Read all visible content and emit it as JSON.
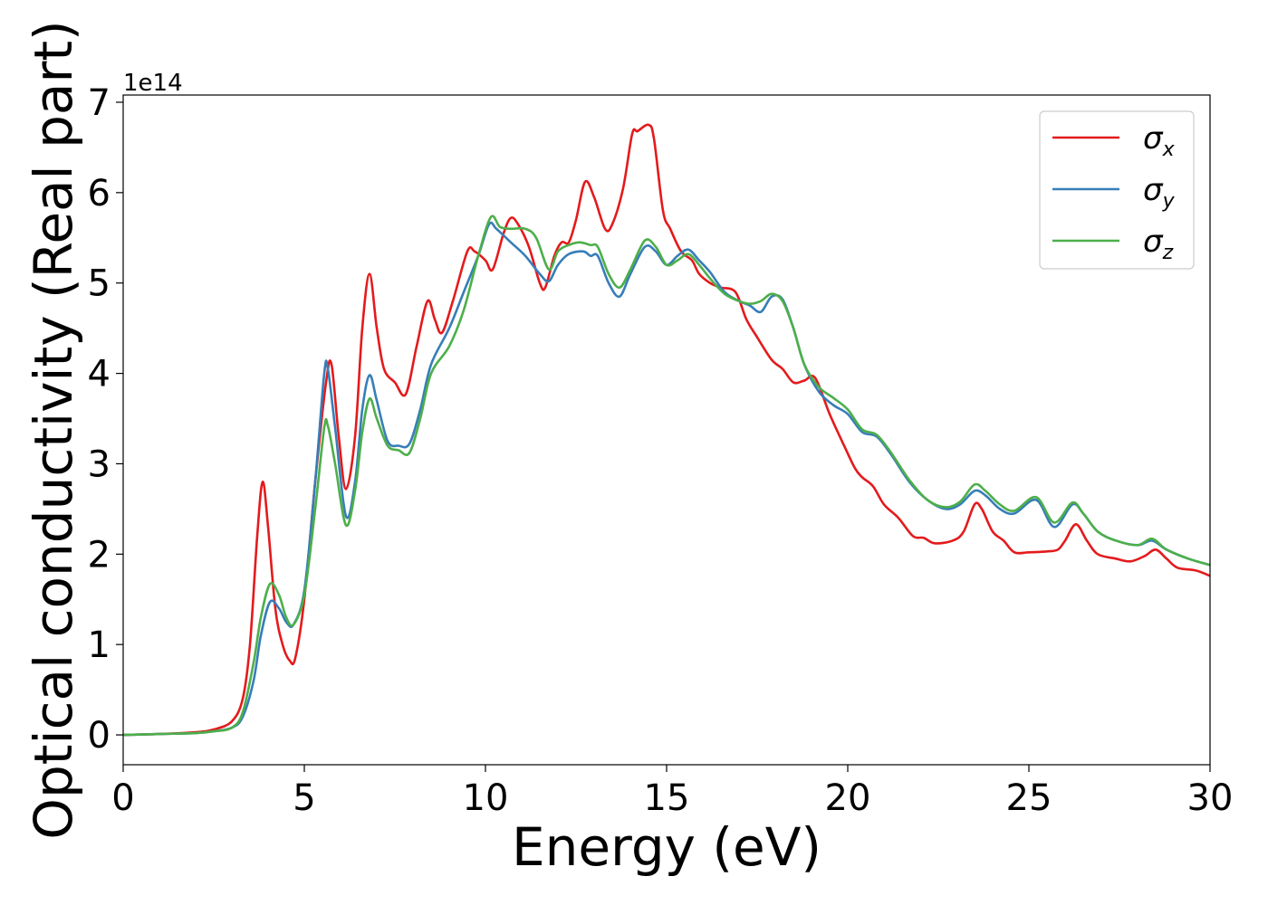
{
  "chart_data": {
    "type": "line",
    "title": "",
    "xlabel": "Energy (eV)",
    "ylabel": "Optical conductivity (Real part)",
    "y_offset_label": "1e14",
    "xlim": [
      0,
      30
    ],
    "ylim": [
      -0.33,
      7.08
    ],
    "xticks": [
      0,
      5,
      10,
      15,
      20,
      25,
      30
    ],
    "xtick_labels": [
      "0",
      "5",
      "10",
      "15",
      "20",
      "25",
      "30"
    ],
    "yticks": [
      0,
      1,
      2,
      3,
      4,
      5,
      6,
      7
    ],
    "ytick_labels": [
      "0",
      "1",
      "2",
      "3",
      "4",
      "5",
      "6",
      "7"
    ],
    "grid": false,
    "legend_position": "top-right",
    "series": [
      {
        "name": "σx",
        "symbol": "σ",
        "subscript": "x",
        "color": "#e41a1c",
        "points": [
          [
            0,
            0
          ],
          [
            1,
            0.01
          ],
          [
            2,
            0.03
          ],
          [
            2.5,
            0.06
          ],
          [
            3,
            0.15
          ],
          [
            3.3,
            0.4
          ],
          [
            3.5,
            1.0
          ],
          [
            3.7,
            2.2
          ],
          [
            3.85,
            2.8
          ],
          [
            4,
            2.3
          ],
          [
            4.2,
            1.4
          ],
          [
            4.4,
            1.0
          ],
          [
            4.6,
            0.82
          ],
          [
            4.75,
            0.85
          ],
          [
            5,
            1.5
          ],
          [
            5.3,
            2.8
          ],
          [
            5.6,
            3.9
          ],
          [
            5.75,
            4.1
          ],
          [
            5.95,
            3.3
          ],
          [
            6.15,
            2.72
          ],
          [
            6.4,
            3.3
          ],
          [
            6.6,
            4.5
          ],
          [
            6.8,
            5.1
          ],
          [
            7,
            4.5
          ],
          [
            7.2,
            4.05
          ],
          [
            7.5,
            3.9
          ],
          [
            7.8,
            3.77
          ],
          [
            8.1,
            4.3
          ],
          [
            8.4,
            4.8
          ],
          [
            8.6,
            4.6
          ],
          [
            8.8,
            4.45
          ],
          [
            9.1,
            4.8
          ],
          [
            9.5,
            5.35
          ],
          [
            9.7,
            5.35
          ],
          [
            10,
            5.25
          ],
          [
            10.2,
            5.15
          ],
          [
            10.5,
            5.55
          ],
          [
            10.7,
            5.72
          ],
          [
            10.9,
            5.65
          ],
          [
            11.2,
            5.4
          ],
          [
            11.5,
            5.0
          ],
          [
            11.65,
            4.95
          ],
          [
            11.9,
            5.3
          ],
          [
            12.1,
            5.45
          ],
          [
            12.3,
            5.45
          ],
          [
            12.5,
            5.7
          ],
          [
            12.75,
            6.12
          ],
          [
            13,
            5.95
          ],
          [
            13.3,
            5.6
          ],
          [
            13.5,
            5.65
          ],
          [
            13.8,
            6.05
          ],
          [
            14.05,
            6.65
          ],
          [
            14.2,
            6.68
          ],
          [
            14.5,
            6.75
          ],
          [
            14.65,
            6.6
          ],
          [
            14.9,
            5.8
          ],
          [
            15.1,
            5.6
          ],
          [
            15.4,
            5.35
          ],
          [
            15.7,
            5.25
          ],
          [
            15.9,
            5.1
          ],
          [
            16.2,
            5.0
          ],
          [
            16.5,
            4.95
          ],
          [
            16.9,
            4.9
          ],
          [
            17.2,
            4.6
          ],
          [
            17.5,
            4.4
          ],
          [
            17.9,
            4.15
          ],
          [
            18.2,
            4.05
          ],
          [
            18.5,
            3.9
          ],
          [
            18.8,
            3.92
          ],
          [
            19.1,
            3.95
          ],
          [
            19.5,
            3.55
          ],
          [
            19.9,
            3.2
          ],
          [
            20.2,
            2.95
          ],
          [
            20.4,
            2.85
          ],
          [
            20.7,
            2.75
          ],
          [
            21,
            2.55
          ],
          [
            21.4,
            2.4
          ],
          [
            21.8,
            2.2
          ],
          [
            22.1,
            2.18
          ],
          [
            22.4,
            2.12
          ],
          [
            22.9,
            2.15
          ],
          [
            23.2,
            2.25
          ],
          [
            23.5,
            2.55
          ],
          [
            23.7,
            2.5
          ],
          [
            24,
            2.25
          ],
          [
            24.3,
            2.15
          ],
          [
            24.6,
            2.02
          ],
          [
            25,
            2.02
          ],
          [
            25.5,
            2.03
          ],
          [
            25.8,
            2.05
          ],
          [
            26,
            2.15
          ],
          [
            26.3,
            2.33
          ],
          [
            26.6,
            2.15
          ],
          [
            26.9,
            2.0
          ],
          [
            27.4,
            1.95
          ],
          [
            27.8,
            1.92
          ],
          [
            28.2,
            1.98
          ],
          [
            28.5,
            2.05
          ],
          [
            28.8,
            1.95
          ],
          [
            29.1,
            1.85
          ],
          [
            29.6,
            1.82
          ],
          [
            30,
            1.76
          ]
        ]
      },
      {
        "name": "σy",
        "symbol": "σ",
        "subscript": "y",
        "color": "#377eb8",
        "points": [
          [
            0,
            0
          ],
          [
            1,
            0.01
          ],
          [
            2,
            0.02
          ],
          [
            2.5,
            0.04
          ],
          [
            3,
            0.08
          ],
          [
            3.3,
            0.2
          ],
          [
            3.6,
            0.6
          ],
          [
            3.8,
            1.1
          ],
          [
            4.05,
            1.47
          ],
          [
            4.3,
            1.4
          ],
          [
            4.5,
            1.25
          ],
          [
            4.7,
            1.22
          ],
          [
            5,
            1.6
          ],
          [
            5.3,
            2.8
          ],
          [
            5.55,
            4.0
          ],
          [
            5.65,
            4.05
          ],
          [
            5.85,
            3.4
          ],
          [
            6.15,
            2.42
          ],
          [
            6.4,
            2.8
          ],
          [
            6.6,
            3.6
          ],
          [
            6.8,
            3.98
          ],
          [
            7,
            3.7
          ],
          [
            7.3,
            3.25
          ],
          [
            7.6,
            3.2
          ],
          [
            7.9,
            3.22
          ],
          [
            8.2,
            3.6
          ],
          [
            8.5,
            4.1
          ],
          [
            9,
            4.5
          ],
          [
            9.4,
            4.9
          ],
          [
            9.8,
            5.3
          ],
          [
            10.1,
            5.65
          ],
          [
            10.3,
            5.6
          ],
          [
            10.7,
            5.45
          ],
          [
            11.1,
            5.3
          ],
          [
            11.5,
            5.1
          ],
          [
            11.75,
            5.02
          ],
          [
            12,
            5.2
          ],
          [
            12.3,
            5.32
          ],
          [
            12.7,
            5.35
          ],
          [
            12.9,
            5.3
          ],
          [
            13.1,
            5.3
          ],
          [
            13.4,
            5.0
          ],
          [
            13.7,
            4.85
          ],
          [
            14,
            5.1
          ],
          [
            14.4,
            5.4
          ],
          [
            14.7,
            5.35
          ],
          [
            15,
            5.2
          ],
          [
            15.3,
            5.3
          ],
          [
            15.6,
            5.37
          ],
          [
            15.9,
            5.25
          ],
          [
            16.2,
            5.12
          ],
          [
            16.6,
            4.9
          ],
          [
            17,
            4.8
          ],
          [
            17.3,
            4.75
          ],
          [
            17.6,
            4.68
          ],
          [
            17.9,
            4.85
          ],
          [
            18.2,
            4.82
          ],
          [
            18.5,
            4.5
          ],
          [
            18.8,
            4.1
          ],
          [
            19.2,
            3.8
          ],
          [
            19.6,
            3.65
          ],
          [
            20,
            3.55
          ],
          [
            20.4,
            3.35
          ],
          [
            20.8,
            3.3
          ],
          [
            21.2,
            3.1
          ],
          [
            21.7,
            2.8
          ],
          [
            22.2,
            2.6
          ],
          [
            22.7,
            2.5
          ],
          [
            23.1,
            2.55
          ],
          [
            23.5,
            2.7
          ],
          [
            23.8,
            2.65
          ],
          [
            24.2,
            2.5
          ],
          [
            24.6,
            2.45
          ],
          [
            25.2,
            2.6
          ],
          [
            25.7,
            2.3
          ],
          [
            26.2,
            2.55
          ],
          [
            26.5,
            2.45
          ],
          [
            26.9,
            2.25
          ],
          [
            27.4,
            2.15
          ],
          [
            28,
            2.1
          ],
          [
            28.4,
            2.15
          ],
          [
            28.8,
            2.05
          ],
          [
            29.4,
            1.95
          ],
          [
            30,
            1.88
          ]
        ]
      },
      {
        "name": "σz",
        "symbol": "σ",
        "subscript": "z",
        "color": "#4daf4a",
        "points": [
          [
            0,
            0
          ],
          [
            1,
            0.01
          ],
          [
            2,
            0.02
          ],
          [
            2.5,
            0.04
          ],
          [
            3,
            0.08
          ],
          [
            3.3,
            0.25
          ],
          [
            3.6,
            0.8
          ],
          [
            3.8,
            1.3
          ],
          [
            4.05,
            1.67
          ],
          [
            4.3,
            1.55
          ],
          [
            4.5,
            1.3
          ],
          [
            4.7,
            1.22
          ],
          [
            5,
            1.55
          ],
          [
            5.3,
            2.5
          ],
          [
            5.55,
            3.4
          ],
          [
            5.65,
            3.42
          ],
          [
            5.85,
            3.0
          ],
          [
            6.15,
            2.32
          ],
          [
            6.4,
            2.7
          ],
          [
            6.6,
            3.35
          ],
          [
            6.8,
            3.72
          ],
          [
            7,
            3.5
          ],
          [
            7.3,
            3.2
          ],
          [
            7.6,
            3.15
          ],
          [
            7.9,
            3.12
          ],
          [
            8.2,
            3.5
          ],
          [
            8.5,
            4.0
          ],
          [
            9,
            4.3
          ],
          [
            9.4,
            4.7
          ],
          [
            9.8,
            5.3
          ],
          [
            10.15,
            5.73
          ],
          [
            10.4,
            5.62
          ],
          [
            10.7,
            5.6
          ],
          [
            11.1,
            5.6
          ],
          [
            11.4,
            5.5
          ],
          [
            11.75,
            5.15
          ],
          [
            12,
            5.35
          ],
          [
            12.3,
            5.42
          ],
          [
            12.6,
            5.45
          ],
          [
            12.9,
            5.42
          ],
          [
            13.1,
            5.4
          ],
          [
            13.4,
            5.1
          ],
          [
            13.7,
            4.95
          ],
          [
            14,
            5.15
          ],
          [
            14.4,
            5.47
          ],
          [
            14.7,
            5.4
          ],
          [
            15,
            5.2
          ],
          [
            15.3,
            5.25
          ],
          [
            15.6,
            5.32
          ],
          [
            15.9,
            5.2
          ],
          [
            16.2,
            5.05
          ],
          [
            16.6,
            4.88
          ],
          [
            17,
            4.8
          ],
          [
            17.3,
            4.77
          ],
          [
            17.6,
            4.8
          ],
          [
            17.9,
            4.88
          ],
          [
            18.2,
            4.8
          ],
          [
            18.5,
            4.5
          ],
          [
            18.8,
            4.1
          ],
          [
            19.2,
            3.85
          ],
          [
            19.6,
            3.73
          ],
          [
            20,
            3.6
          ],
          [
            20.4,
            3.38
          ],
          [
            20.8,
            3.32
          ],
          [
            21.2,
            3.12
          ],
          [
            21.7,
            2.82
          ],
          [
            22.2,
            2.6
          ],
          [
            22.7,
            2.52
          ],
          [
            23.1,
            2.58
          ],
          [
            23.5,
            2.77
          ],
          [
            23.8,
            2.7
          ],
          [
            24.2,
            2.55
          ],
          [
            24.6,
            2.48
          ],
          [
            25.2,
            2.63
          ],
          [
            25.7,
            2.35
          ],
          [
            26.2,
            2.57
          ],
          [
            26.5,
            2.45
          ],
          [
            26.9,
            2.25
          ],
          [
            27.4,
            2.15
          ],
          [
            28,
            2.1
          ],
          [
            28.4,
            2.17
          ],
          [
            28.8,
            2.05
          ],
          [
            29.4,
            1.95
          ],
          [
            30,
            1.88
          ]
        ]
      }
    ]
  }
}
